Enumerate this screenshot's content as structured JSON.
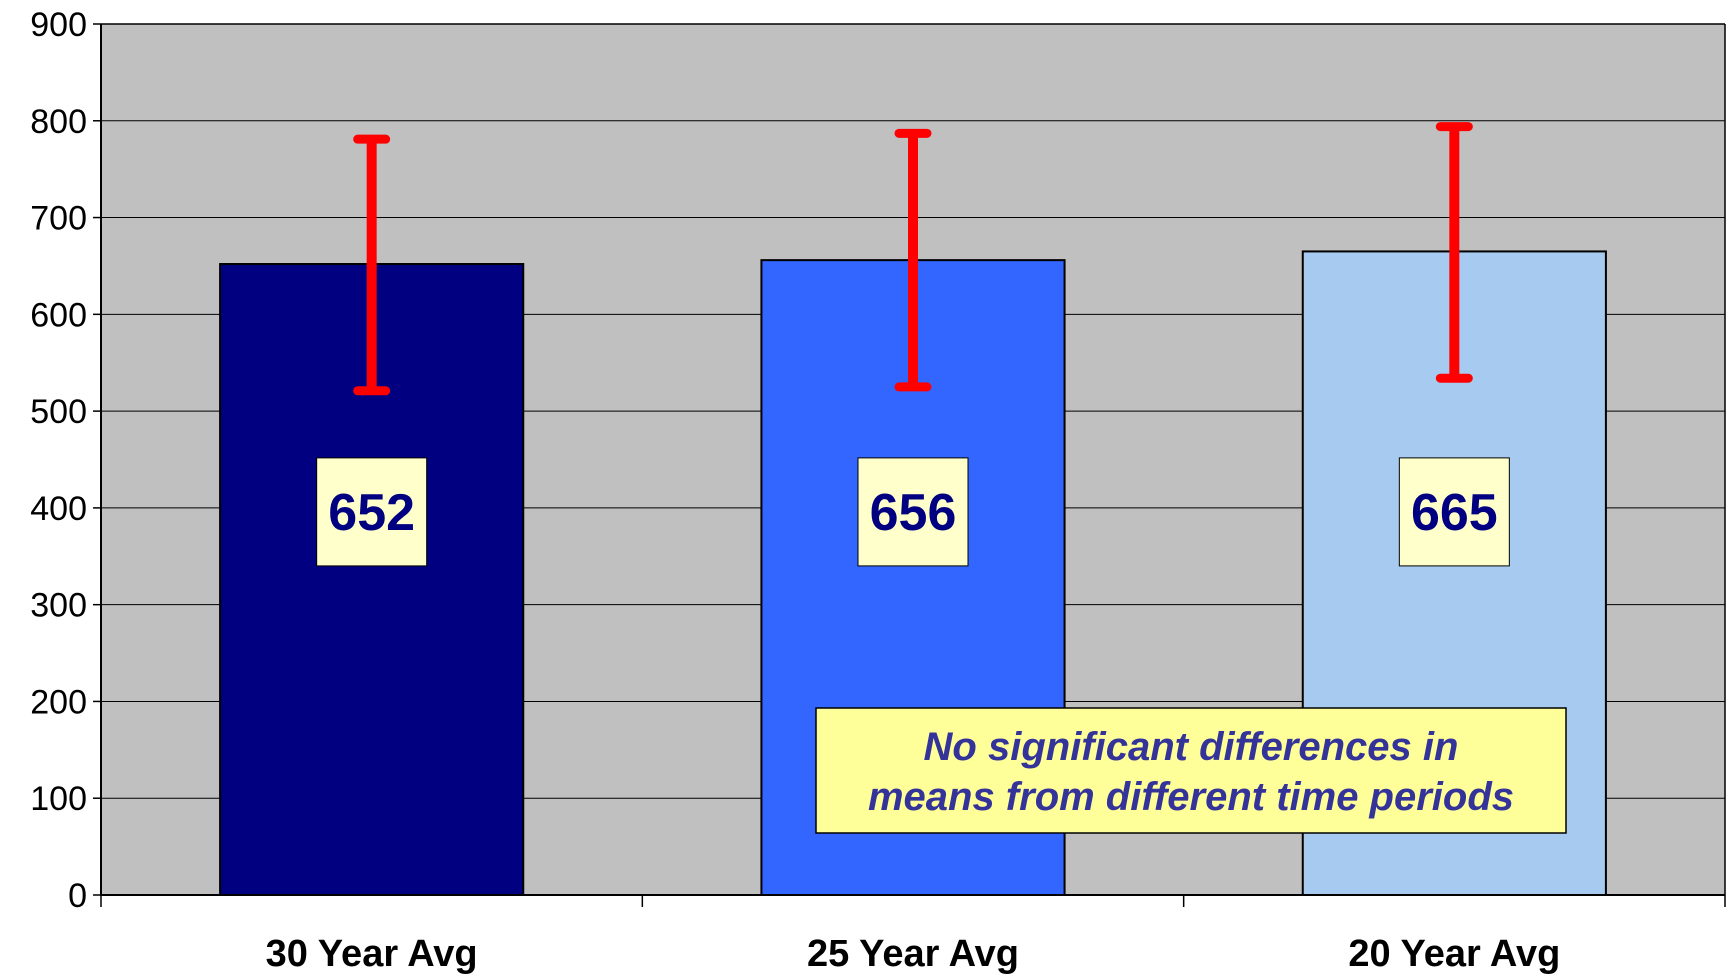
{
  "chart_data": {
    "type": "bar",
    "categories": [
      "30 Year Avg",
      "25 Year Avg",
      "20 Year Avg"
    ],
    "values": [
      652,
      656,
      665
    ],
    "data_labels": [
      "652",
      "656",
      "665"
    ],
    "error_bars": [
      {
        "low": 521,
        "high": 781
      },
      {
        "low": 525,
        "high": 787
      },
      {
        "low": 534,
        "high": 794
      }
    ],
    "ylim": [
      0,
      900
    ],
    "yticks": [
      0,
      100,
      200,
      300,
      400,
      500,
      600,
      700,
      800,
      900
    ],
    "title": "",
    "xlabel": "",
    "ylabel": "",
    "grid": true,
    "annotation": {
      "line1": "No significant differences in",
      "line2": "means from different time periods"
    },
    "colors": {
      "plot_background": "#c0c0c0",
      "bars": [
        "#000080",
        "#3366ff",
        "#a6caf0"
      ],
      "error_bar": "#ff0000",
      "label_box": "#ffffcc",
      "label_text": "#000080",
      "annotation_box": "#ffff99",
      "annotation_text": "#333399"
    }
  }
}
